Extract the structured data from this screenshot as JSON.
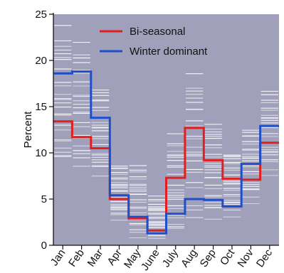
{
  "chart_data": {
    "type": "line",
    "title": "",
    "xlabel": "",
    "ylabel": "Percent",
    "ylim": [
      0,
      25
    ],
    "yticks": [
      0,
      5,
      10,
      15,
      20,
      25
    ],
    "grid": false,
    "legend_position": "top-right",
    "categories": [
      "Jan",
      "Feb",
      "Mar",
      "Apr",
      "May",
      "June",
      "July",
      "Aug",
      "Sep",
      "Oct",
      "Nov",
      "Dec"
    ],
    "series": [
      {
        "name": "Bi-seasonal",
        "color": "#e02020",
        "values": [
          13.4,
          11.7,
          10.5,
          5.0,
          2.9,
          1.6,
          7.3,
          12.7,
          9.2,
          7.2,
          7.1,
          11.1
        ]
      },
      {
        "name": "Winter dominant",
        "color": "#1f4fc8",
        "values": [
          18.6,
          18.8,
          13.8,
          5.4,
          3.1,
          1.3,
          3.4,
          5.0,
          4.9,
          4.2,
          8.8,
          12.9
        ]
      }
    ],
    "background_ranges": [
      {
        "month": "Jan",
        "low": 8.0,
        "high": 24.0
      },
      {
        "month": "Feb",
        "low": 7.5,
        "high": 22.5
      },
      {
        "month": "Mar",
        "low": 7.0,
        "high": 17.5
      },
      {
        "month": "Apr",
        "low": 2.5,
        "high": 9.0
      },
      {
        "month": "May",
        "low": 0.5,
        "high": 9.0
      },
      {
        "month": "June",
        "low": 0.5,
        "high": 5.5
      },
      {
        "month": "July",
        "low": 1.0,
        "high": 12.5
      },
      {
        "month": "Aug",
        "low": 2.0,
        "high": 19.5
      },
      {
        "month": "Sep",
        "low": 2.5,
        "high": 14.0
      },
      {
        "month": "Oct",
        "low": 3.0,
        "high": 10.5
      },
      {
        "month": "Nov",
        "low": 4.5,
        "high": 13.0
      },
      {
        "month": "Dec",
        "low": 7.5,
        "high": 17.0
      }
    ],
    "plot_background": "#a0a0ba"
  }
}
